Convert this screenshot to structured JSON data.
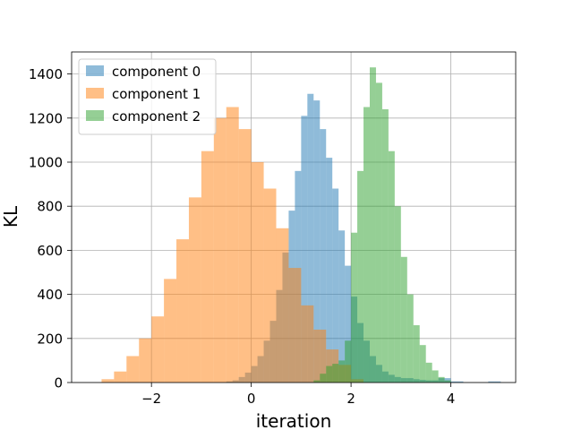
{
  "chart_data": {
    "type": "bar",
    "subtype": "overlaid-histogram",
    "title": "",
    "xlabel": "iteration",
    "ylabel": "KL",
    "xlim": [
      -3.6,
      5.3
    ],
    "ylim": [
      0,
      1500
    ],
    "xticks": [
      -2,
      0,
      2,
      4
    ],
    "xtick_labels": [
      "−2",
      "0",
      "2",
      "4"
    ],
    "yticks": [
      0,
      200,
      400,
      600,
      800,
      1000,
      1200,
      1400
    ],
    "ytick_labels": [
      "0",
      "200",
      "400",
      "600",
      "800",
      "1000",
      "1200",
      "1400"
    ],
    "grid": true,
    "legend_position": "upper-left",
    "series": [
      {
        "name": "component 0",
        "color": "#1f77b4",
        "alpha": 0.5,
        "bin_edges": [
          -0.5,
          -0.375,
          -0.25,
          -0.125,
          0.0,
          0.125,
          0.25,
          0.375,
          0.5,
          0.625,
          0.75,
          0.875,
          1.0,
          1.125,
          1.25,
          1.375,
          1.5,
          1.625,
          1.75,
          1.875,
          2.0,
          2.125,
          2.25,
          2.375,
          2.5,
          2.625,
          2.75,
          2.875,
          3.0,
          3.125,
          3.25,
          3.375,
          3.5,
          3.625,
          3.75,
          3.875,
          4.0,
          4.125,
          4.25,
          4.375,
          4.5,
          4.625,
          4.75,
          4.875,
          5.0
        ],
        "counts": [
          5,
          10,
          25,
          45,
          75,
          120,
          190,
          280,
          420,
          590,
          780,
          960,
          1210,
          1310,
          1280,
          1150,
          1020,
          880,
          690,
          530,
          390,
          270,
          190,
          120,
          80,
          50,
          35,
          25,
          20,
          20,
          15,
          12,
          10,
          10,
          20,
          20,
          5,
          5,
          0,
          0,
          0,
          0,
          5,
          5
        ]
      },
      {
        "name": "component 1",
        "color": "#ff7f0e",
        "alpha": 0.5,
        "bin_edges": [
          -3.0,
          -2.75,
          -2.5,
          -2.25,
          -2.0,
          -1.75,
          -1.5,
          -1.25,
          -1.0,
          -0.75,
          -0.5,
          -0.25,
          0.0,
          0.25,
          0.5,
          0.75,
          1.0,
          1.25,
          1.5,
          1.75,
          2.0,
          2.25
        ],
        "counts": [
          15,
          50,
          120,
          200,
          300,
          470,
          650,
          840,
          1050,
          1200,
          1250,
          1150,
          1000,
          880,
          700,
          520,
          350,
          240,
          150,
          80,
          15
        ]
      },
      {
        "name": "component 2",
        "color": "#2ca02c",
        "alpha": 0.5,
        "bin_edges": [
          1.25,
          1.375,
          1.5,
          1.625,
          1.75,
          1.875,
          2.0,
          2.125,
          2.25,
          2.375,
          2.5,
          2.625,
          2.75,
          2.875,
          3.0,
          3.125,
          3.25,
          3.375,
          3.5,
          3.625,
          3.75,
          3.875,
          4.0
        ],
        "counts": [
          10,
          40,
          75,
          85,
          100,
          190,
          680,
          960,
          1250,
          1430,
          1360,
          1240,
          1050,
          800,
          570,
          400,
          260,
          170,
          90,
          55,
          25,
          10
        ]
      }
    ]
  }
}
